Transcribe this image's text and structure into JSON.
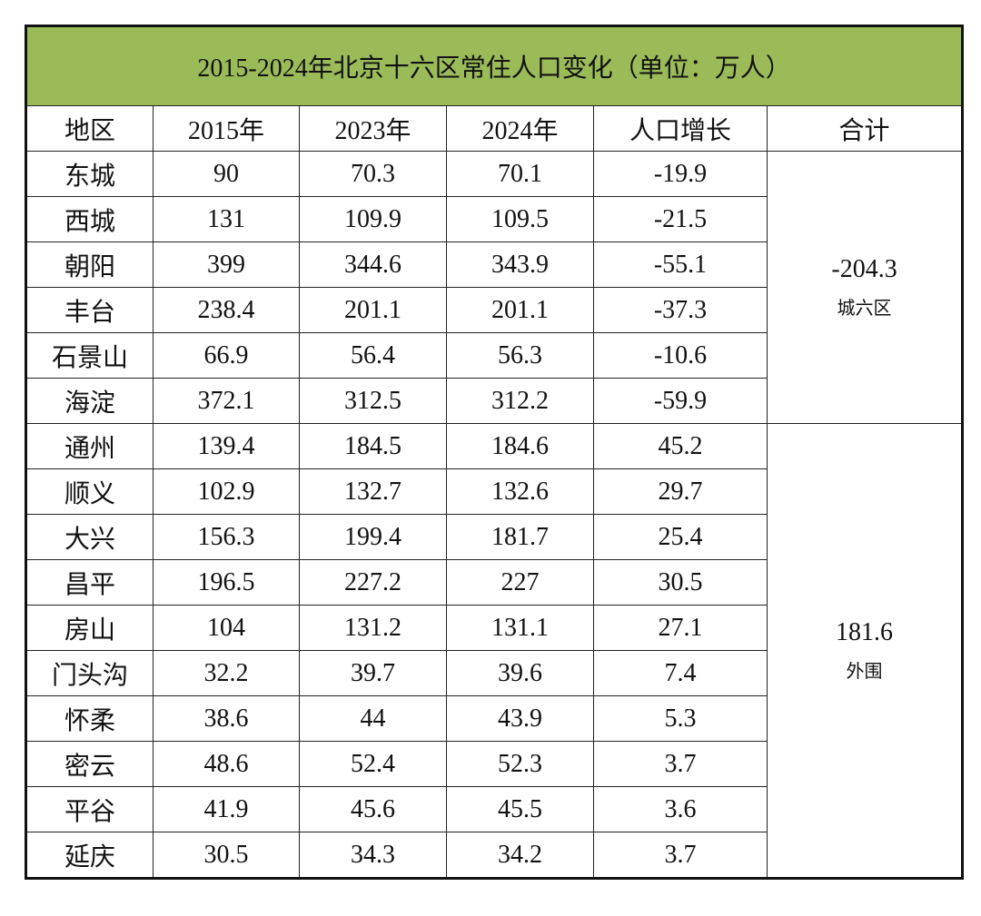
{
  "title": "2015-2024年北京十六区常住人口变化（单位：万人）",
  "table": {
    "header": [
      "地区",
      "2015年",
      "2023年",
      "2024年",
      "人口增长",
      "合计"
    ],
    "groups": [
      {
        "total": -204.3,
        "label": "城六区",
        "rows": [
          [
            "东城",
            90,
            70.3,
            70.1,
            -19.9
          ],
          [
            "西城",
            131,
            109.9,
            109.5,
            -21.5
          ],
          [
            "朝阳",
            399,
            344.6,
            343.9,
            -55.1
          ],
          [
            "丰台",
            238.4,
            201.1,
            201.1,
            -37.3
          ],
          [
            "石景山",
            66.9,
            56.4,
            56.3,
            -10.6
          ],
          [
            "海淀",
            372.1,
            312.5,
            312.2,
            -59.9
          ]
        ]
      },
      {
        "total": 181.6,
        "label": "外围",
        "rows": [
          [
            "通州",
            139.4,
            184.5,
            184.6,
            45.2
          ],
          [
            "顺义",
            102.9,
            132.7,
            132.6,
            29.7
          ],
          [
            "大兴",
            156.3,
            199.4,
            181.7,
            25.4
          ],
          [
            "昌平",
            196.5,
            227.2,
            227,
            30.5
          ],
          [
            "房山",
            104,
            131.2,
            131.1,
            27.1
          ],
          [
            "门头沟",
            32.2,
            39.7,
            39.6,
            7.4
          ],
          [
            "怀柔",
            38.6,
            44,
            43.9,
            5.3
          ],
          [
            "密云",
            48.6,
            52.4,
            52.3,
            3.7
          ],
          [
            "平谷",
            41.9,
            45.6,
            45.5,
            3.6
          ],
          [
            "延庆",
            30.5,
            34.3,
            34.2,
            3.7
          ]
        ]
      }
    ]
  }
}
